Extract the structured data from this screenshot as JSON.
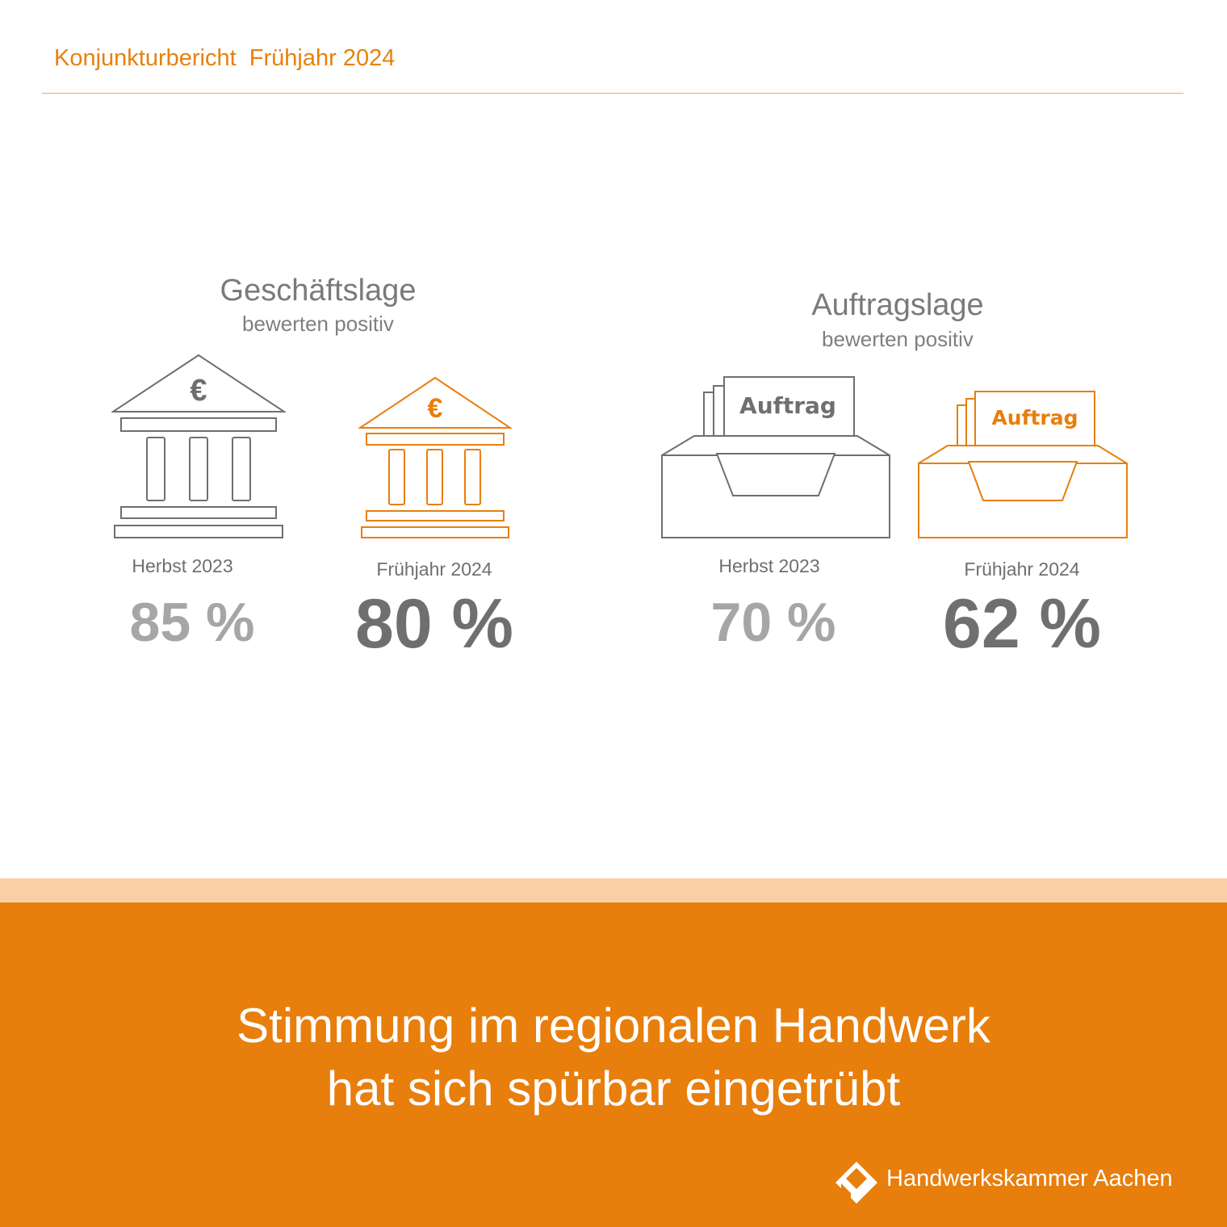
{
  "header": {
    "title": "Konjunkturbericht  Frühjahr 2024"
  },
  "groups": [
    {
      "title": "Geschäftslage",
      "subtitle": "bewerten positiv",
      "icon": "bank-euro-icon",
      "items": [
        {
          "period": "Herbst 2023",
          "value": "85 %",
          "percent": 85
        },
        {
          "period": "Frühjahr 2024",
          "value": "80 %",
          "percent": 80
        }
      ]
    },
    {
      "title": "Auftragslage",
      "subtitle": "bewerten positiv",
      "icon": "order-tray-icon",
      "icon_label": "Auftrag",
      "items": [
        {
          "period": "Herbst 2023",
          "value": "70 %",
          "percent": 70
        },
        {
          "period": "Frühjahr 2024",
          "value": "62 %",
          "percent": 62
        }
      ]
    }
  ],
  "banner": {
    "line1": "Stimmung im regionalen Handwerk",
    "line2": "hat sich spürbar eingetrübt"
  },
  "logo": {
    "name": "Handwerkskammer Aachen"
  },
  "colors": {
    "accent": "#e87e0c",
    "accent_light": "#f9cfa6",
    "gray": "#6f6f6f",
    "gray_light": "#a6a6a6"
  }
}
